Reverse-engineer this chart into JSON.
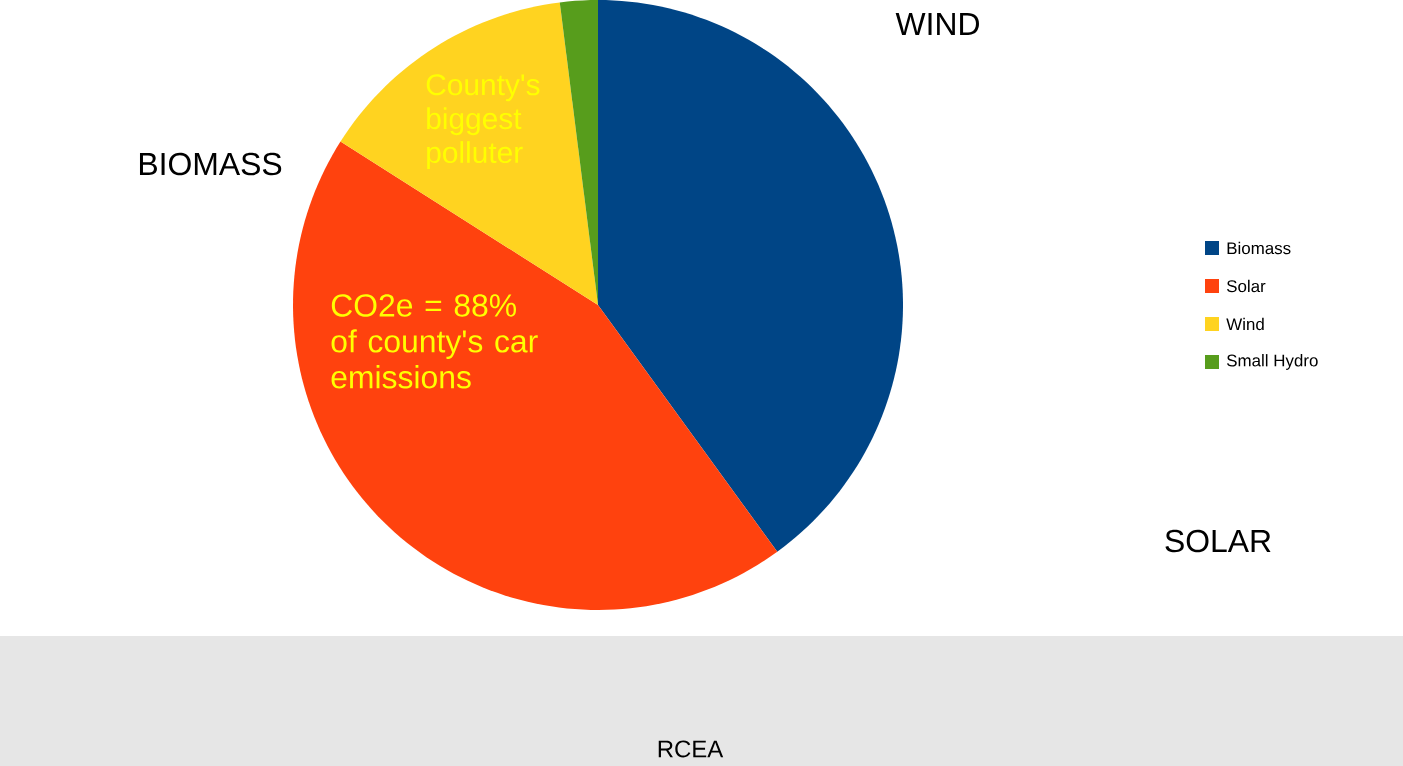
{
  "chart_data": {
    "type": "pie",
    "categories": [
      "Biomass",
      "Solar",
      "Wind",
      "Small Hydro"
    ],
    "values": [
      40,
      44,
      14,
      2
    ],
    "colors": [
      "#004586",
      "#ff420e",
      "#ffd320",
      "#579d1c"
    ],
    "legend": "right",
    "annotations": [
      "WIND",
      "BIOMASS",
      "SOLAR",
      "County's biggest polluter",
      "CO2e = 88% of county's car emissions",
      "RCEA"
    ]
  }
}
